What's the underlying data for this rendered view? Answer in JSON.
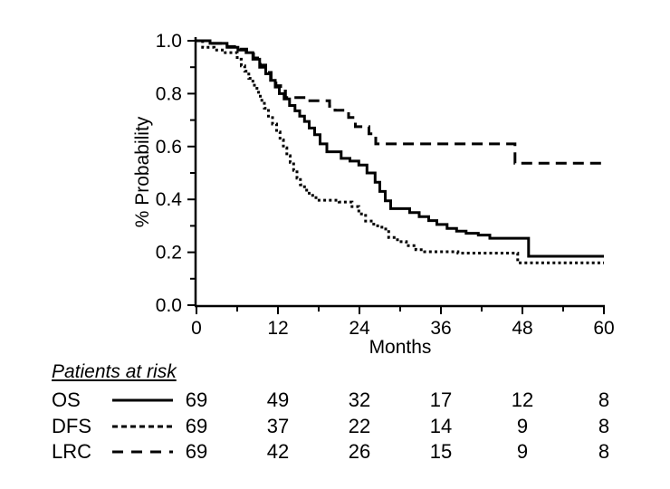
{
  "figure": {
    "background": "#ffffff",
    "ink_color": "#000000"
  },
  "chart_data": {
    "type": "line",
    "subtype": "kaplan-meier-step-survival",
    "title": "",
    "xlabel": "Months",
    "ylabel": "% Probability",
    "xlim": [
      0,
      60
    ],
    "ylim": [
      0.0,
      1.0
    ],
    "grid": false,
    "legend_position": "in-risk-table",
    "x_major_ticks": [
      0,
      12,
      24,
      36,
      48,
      60
    ],
    "x_minor_ticks": [
      6,
      18,
      30,
      42,
      54
    ],
    "y_major_tick_labels": [
      "1.0",
      "0.8",
      "0.6",
      "0.4",
      "0.2",
      "0.0"
    ],
    "y_minor_ticks": [
      0.9,
      0.7,
      0.5,
      0.3,
      0.1
    ],
    "line_color": "#000000",
    "series": [
      {
        "name": "OS",
        "line_style": "solid",
        "points": [
          [
            0,
            1.0
          ],
          [
            2,
            0.99
          ],
          [
            4.5,
            0.975
          ],
          [
            6.1,
            0.965
          ],
          [
            7.3,
            0.955
          ],
          [
            8.3,
            0.93
          ],
          [
            9.3,
            0.9
          ],
          [
            10.2,
            0.875
          ],
          [
            10.9,
            0.85
          ],
          [
            11.6,
            0.825
          ],
          [
            12.2,
            0.8
          ],
          [
            12.9,
            0.78
          ],
          [
            13.7,
            0.755
          ],
          [
            14.5,
            0.735
          ],
          [
            15.2,
            0.715
          ],
          [
            15.9,
            0.695
          ],
          [
            16.6,
            0.67
          ],
          [
            17.4,
            0.645
          ],
          [
            18.2,
            0.61
          ],
          [
            19.2,
            0.58
          ],
          [
            21.3,
            0.555
          ],
          [
            22.6,
            0.545
          ],
          [
            23.9,
            0.53
          ],
          [
            25.1,
            0.5
          ],
          [
            26.3,
            0.465
          ],
          [
            27.0,
            0.43
          ],
          [
            27.8,
            0.395
          ],
          [
            28.6,
            0.365
          ],
          [
            31.4,
            0.35
          ],
          [
            32.8,
            0.335
          ],
          [
            34.2,
            0.32
          ],
          [
            35.4,
            0.305
          ],
          [
            36.9,
            0.29
          ],
          [
            38.3,
            0.28
          ],
          [
            39.7,
            0.272
          ],
          [
            41.5,
            0.265
          ],
          [
            43.2,
            0.253
          ],
          [
            48.9,
            0.185
          ],
          [
            60,
            0.185
          ]
        ]
      },
      {
        "name": "DFS",
        "line_style": "dotted",
        "points": [
          [
            0,
            1.0
          ],
          [
            0.9,
            0.975
          ],
          [
            2.6,
            0.965
          ],
          [
            4.0,
            0.955
          ],
          [
            6.0,
            0.93
          ],
          [
            6.6,
            0.905
          ],
          [
            7.1,
            0.885
          ],
          [
            7.7,
            0.858
          ],
          [
            8.3,
            0.832
          ],
          [
            8.9,
            0.805
          ],
          [
            9.4,
            0.775
          ],
          [
            10.0,
            0.745
          ],
          [
            10.6,
            0.715
          ],
          [
            11.2,
            0.685
          ],
          [
            11.8,
            0.655
          ],
          [
            12.3,
            0.625
          ],
          [
            12.8,
            0.595
          ],
          [
            13.3,
            0.565
          ],
          [
            13.8,
            0.54
          ],
          [
            14.3,
            0.51
          ],
          [
            14.8,
            0.48
          ],
          [
            15.3,
            0.455
          ],
          [
            15.9,
            0.435
          ],
          [
            16.6,
            0.415
          ],
          [
            17.6,
            0.397
          ],
          [
            21.0,
            0.39
          ],
          [
            22.9,
            0.373
          ],
          [
            23.9,
            0.345
          ],
          [
            24.9,
            0.318
          ],
          [
            26.1,
            0.3
          ],
          [
            27.3,
            0.288
          ],
          [
            28.3,
            0.256
          ],
          [
            29.6,
            0.24
          ],
          [
            30.9,
            0.225
          ],
          [
            32.3,
            0.21
          ],
          [
            33.6,
            0.202
          ],
          [
            38.5,
            0.197
          ],
          [
            47.3,
            0.16
          ],
          [
            60,
            0.16
          ]
        ]
      },
      {
        "name": "LRC",
        "line_style": "dashed",
        "points": [
          [
            0,
            1.0
          ],
          [
            2,
            0.99
          ],
          [
            4.5,
            0.978
          ],
          [
            6.2,
            0.968
          ],
          [
            7.4,
            0.958
          ],
          [
            8.4,
            0.935
          ],
          [
            9.4,
            0.908
          ],
          [
            10.2,
            0.88
          ],
          [
            11.0,
            0.855
          ],
          [
            11.7,
            0.83
          ],
          [
            12.4,
            0.81
          ],
          [
            13.1,
            0.785
          ],
          [
            16.2,
            0.773
          ],
          [
            19.6,
            0.752
          ],
          [
            20.4,
            0.737
          ],
          [
            22.4,
            0.71
          ],
          [
            23.4,
            0.675
          ],
          [
            25.4,
            0.648
          ],
          [
            26.4,
            0.61
          ],
          [
            46.9,
            0.537
          ],
          [
            60,
            0.537
          ]
        ]
      }
    ]
  },
  "risk_table": {
    "title": "Patients at risk",
    "time_points": [
      0,
      12,
      24,
      36,
      48,
      60
    ],
    "rows": [
      {
        "label": "OS",
        "line_style": "solid",
        "counts": [
          69,
          49,
          32,
          17,
          12,
          8
        ]
      },
      {
        "label": "DFS",
        "line_style": "dotted",
        "counts": [
          69,
          37,
          22,
          14,
          9,
          8
        ]
      },
      {
        "label": "LRC",
        "line_style": "dashed",
        "counts": [
          69,
          42,
          26,
          15,
          9,
          8
        ]
      }
    ]
  }
}
